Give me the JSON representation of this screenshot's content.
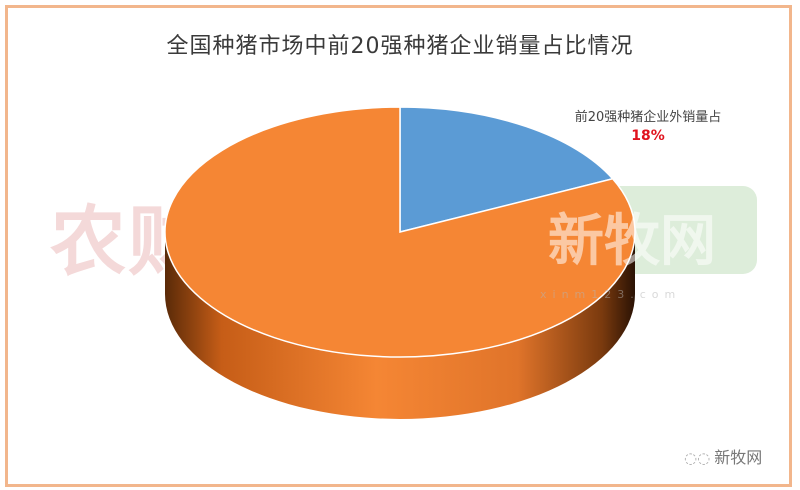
{
  "chart_data": {
    "type": "pie",
    "title": "全国种猪市场中前20强种猪企业销量占比情况",
    "style": "3d",
    "slices": [
      {
        "label": "前20强种猪企业外销量占",
        "value": 18,
        "display": "18%",
        "color": "#5b9bd5"
      },
      {
        "label": "",
        "value": 82,
        "color": "#f58634"
      }
    ],
    "start_angle": "12 o'clock, clockwise"
  },
  "watermarks": {
    "left": "农财宝典",
    "right": "新牧网",
    "url": "xinm123.com"
  },
  "footer": {
    "icon": "wechat-icon",
    "text": "新牧网"
  }
}
